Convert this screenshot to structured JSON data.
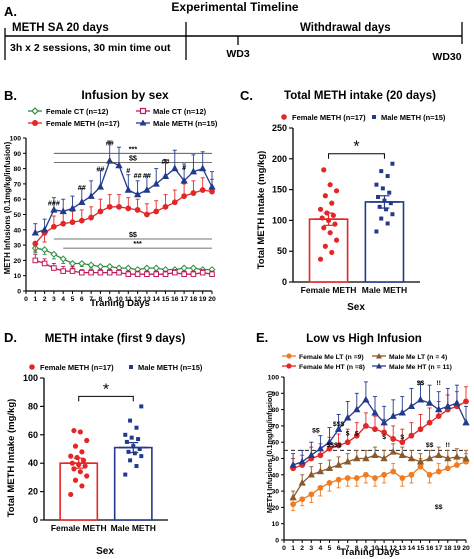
{
  "panels": {
    "a": {
      "letter": "A.",
      "title": "Experimental Timeline",
      "sa_header": "METH SA 20 days",
      "sa_detail": "3h x 2 sessions, 30 min time out",
      "withdrawal_header": "Withdrawal days",
      "wd3": "WD3",
      "wd30": "WD30"
    },
    "b": {
      "letter": "B."
    },
    "c": {
      "letter": "C."
    },
    "d": {
      "letter": "D."
    },
    "e": {
      "letter": "E."
    }
  },
  "colors": {
    "female_ct": "#2e8b3e",
    "male_ct": "#c2185b",
    "female_meth": "#e32626",
    "male_meth": "#233a8c",
    "female_lt": "#f07c22",
    "male_lt": "#8b5a2b"
  },
  "chart_data": [
    {
      "id": "b",
      "type": "line",
      "title": "Infusion by sex",
      "xlabel": "Traning Days",
      "ylabel": "METH Infusions (0.1mg/kg/infusion)",
      "x": [
        0,
        1,
        2,
        3,
        4,
        5,
        6,
        7,
        8,
        9,
        10,
        11,
        12,
        13,
        14,
        15,
        16,
        17,
        18,
        19,
        20
      ],
      "xticks": [
        "0",
        "1",
        "2",
        "3",
        "4",
        "5",
        "6",
        "7",
        "8",
        "9",
        "10",
        "11",
        "12",
        "13",
        "14",
        "15",
        "16",
        "17",
        "18",
        "19",
        "20"
      ],
      "xlim": [
        0,
        20
      ],
      "ylim": [
        0,
        100
      ],
      "yticks": [
        "0",
        "10",
        "20",
        "30",
        "40",
        "50",
        "60",
        "70",
        "80",
        "90",
        "100"
      ],
      "series": [
        {
          "name": "Female CT (n=12)",
          "color_key": "female_ct",
          "marker": "diamond",
          "x": [
            1,
            2,
            3,
            4,
            5,
            6,
            7,
            8,
            9,
            10,
            11,
            12,
            13,
            14,
            15,
            16,
            17,
            18,
            19,
            20
          ],
          "values": [
            28,
            27,
            24,
            21,
            18,
            18,
            17,
            16,
            16,
            15,
            15,
            14,
            15,
            15,
            14,
            14,
            15,
            15,
            14,
            14
          ],
          "err": [
            3,
            3,
            3,
            3,
            3,
            2,
            2,
            2,
            2,
            2,
            2,
            2,
            2,
            2,
            2,
            2,
            2,
            2,
            2,
            2
          ]
        },
        {
          "name": "Male CT (n=12)",
          "color_key": "male_ct",
          "marker": "square",
          "x": [
            1,
            2,
            3,
            4,
            5,
            6,
            7,
            8,
            9,
            10,
            11,
            12,
            13,
            14,
            15,
            16,
            17,
            18,
            19,
            20
          ],
          "values": [
            20,
            18,
            15,
            13,
            13,
            12,
            12,
            12,
            12,
            12,
            11,
            11,
            11,
            11,
            11,
            12,
            11,
            11,
            12,
            11
          ],
          "err": [
            4,
            3,
            3,
            3,
            3,
            2,
            2,
            2,
            2,
            2,
            2,
            2,
            2,
            2,
            2,
            2,
            2,
            2,
            2,
            2
          ]
        },
        {
          "name": "Female METH (n=17)",
          "color_key": "female_meth",
          "marker": "circle",
          "x": [
            1,
            2,
            3,
            4,
            5,
            6,
            7,
            8,
            9,
            10,
            11,
            12,
            13,
            14,
            15,
            16,
            17,
            18,
            19,
            20
          ],
          "values": [
            31,
            38,
            42,
            44,
            45,
            46,
            48,
            52,
            55,
            55,
            54,
            53,
            50,
            52,
            55,
            58,
            62,
            64,
            66,
            65
          ],
          "err": [
            5,
            6,
            7,
            7,
            7,
            7,
            7,
            8,
            8,
            8,
            7,
            7,
            7,
            7,
            8,
            8,
            8,
            8,
            8,
            8
          ]
        },
        {
          "name": "Male METH (n=15)",
          "color_key": "male_meth",
          "marker": "triangle",
          "x": [
            1,
            2,
            3,
            4,
            5,
            6,
            7,
            8,
            9,
            10,
            11,
            12,
            13,
            14,
            15,
            16,
            17,
            18,
            19,
            20
          ],
          "values": [
            38,
            40,
            53,
            52,
            54,
            58,
            62,
            68,
            85,
            82,
            66,
            63,
            66,
            70,
            75,
            80,
            72,
            78,
            80,
            68
          ],
          "err": [
            6,
            7,
            8,
            8,
            8,
            9,
            10,
            11,
            13,
            12,
            10,
            9,
            10,
            10,
            11,
            12,
            11,
            11,
            11,
            10
          ]
        }
      ],
      "annotations": [
        {
          "text": "***",
          "level": 90,
          "from": 3,
          "to": 20
        },
        {
          "text": "$$",
          "level": 84,
          "from": 3,
          "to": 20
        },
        {
          "text": "###",
          "x": 3,
          "y": 56
        },
        {
          "text": "##",
          "x": 6,
          "y": 66
        },
        {
          "text": "##",
          "x": 8,
          "y": 78
        },
        {
          "text": "##",
          "x": 9,
          "y": 95
        },
        {
          "text": "#",
          "x": 11,
          "y": 77
        },
        {
          "text": "##",
          "x": 12,
          "y": 74
        },
        {
          "text": "##",
          "x": 13,
          "y": 74
        },
        {
          "text": "##",
          "x": 15,
          "y": 83
        },
        {
          "text": "#",
          "x": 17,
          "y": 79
        },
        {
          "text": "$$",
          "level": 34,
          "from": 3,
          "to": 20
        },
        {
          "text": "***",
          "level": 28,
          "from": 4,
          "to": 20
        }
      ]
    },
    {
      "id": "c",
      "type": "bar",
      "title": "Total METH intake (20 days)",
      "xlabel": "Sex",
      "ylabel": "Total METH Intake (mg/kg)",
      "categories": [
        "Female METH",
        "Male METH"
      ],
      "legend": [
        "Female METH (n=17)",
        "Male METH (n=15)"
      ],
      "ylim": [
        0,
        250
      ],
      "yticks": [
        "0",
        "50",
        "100",
        "150",
        "200",
        "250"
      ],
      "values": [
        102,
        130
      ],
      "errors": [
        10,
        10
      ],
      "points": [
        [
          37,
          48,
          58,
          68,
          80,
          88,
          94,
          100,
          104,
          108,
          112,
          118,
          128,
          140,
          148,
          158,
          182
        ],
        [
          82,
          95,
          103,
          110,
          118,
          122,
          128,
          132,
          138,
          145,
          152,
          158,
          172,
          180,
          192
        ]
      ],
      "significance": "*"
    },
    {
      "id": "d",
      "type": "bar",
      "title": "METH intake (first 9 days)",
      "xlabel": "Sex",
      "ylabel": "Total METH Intake (mg/kg)",
      "categories": [
        "Female METH",
        "Male METH"
      ],
      "legend": [
        "Female METH (n=17)",
        "Male METH (n=15)"
      ],
      "ylim": [
        0,
        100
      ],
      "yticks": [
        "0",
        "20",
        "40",
        "60",
        "80",
        "100"
      ],
      "values": [
        40,
        51
      ],
      "errors": [
        3.5,
        3.5
      ],
      "points": [
        [
          18,
          24,
          28,
          31,
          34,
          36,
          38,
          39,
          40,
          42,
          44,
          45,
          48,
          52,
          56,
          62,
          63
        ],
        [
          32,
          38,
          42,
          45,
          47,
          48,
          50,
          52,
          55,
          57,
          58,
          60,
          65,
          70,
          80
        ]
      ],
      "significance": "*"
    },
    {
      "id": "e",
      "type": "line",
      "title": "Low vs High Infusion",
      "xlabel": "Traning Days",
      "ylabel": "METH Infusions (0.1mg/kg/infusion)",
      "x": [
        0,
        1,
        2,
        3,
        4,
        5,
        6,
        7,
        8,
        9,
        10,
        11,
        12,
        13,
        14,
        15,
        16,
        17,
        18,
        19,
        20
      ],
      "xticks": [
        "0",
        "1",
        "2",
        "3",
        "4",
        "5",
        "6",
        "7",
        "8",
        "9",
        "10",
        "11",
        "12",
        "13",
        "14",
        "15",
        "16",
        "17",
        "18",
        "19",
        "20"
      ],
      "xlim": [
        0,
        20
      ],
      "ylim": [
        0,
        100
      ],
      "yticks": [
        "0",
        "10",
        "20",
        "30",
        "40",
        "50",
        "60",
        "70",
        "80",
        "90",
        "100"
      ],
      "threshold": 55,
      "series": [
        {
          "name": "Female Me LT (n =9)",
          "color_key": "female_lt",
          "marker": "circle",
          "x": [
            1,
            2,
            3,
            4,
            5,
            6,
            7,
            8,
            9,
            10,
            11,
            12,
            13,
            14,
            15,
            16,
            17,
            18,
            19,
            20
          ],
          "values": [
            22,
            25,
            28,
            32,
            35,
            37,
            38,
            38,
            40,
            38,
            40,
            42,
            38,
            40,
            45,
            40,
            42,
            44,
            46,
            48
          ],
          "err": [
            4,
            4,
            5,
            5,
            5,
            5,
            5,
            5,
            5,
            5,
            5,
            5,
            5,
            5,
            5,
            5,
            5,
            5,
            5,
            5
          ]
        },
        {
          "name": "Male Me LT (n = 4)",
          "color_key": "male_lt",
          "marker": "triangle",
          "x": [
            1,
            2,
            3,
            4,
            5,
            6,
            7,
            8,
            9,
            10,
            11,
            12,
            13,
            14,
            15,
            16,
            17,
            18,
            19,
            20
          ],
          "values": [
            26,
            35,
            40,
            42,
            44,
            46,
            48,
            50,
            50,
            52,
            50,
            54,
            52,
            50,
            48,
            50,
            52,
            50,
            51,
            50
          ],
          "err": [
            4,
            5,
            5,
            5,
            5,
            5,
            5,
            5,
            5,
            5,
            5,
            5,
            5,
            5,
            5,
            5,
            5,
            5,
            5,
            5
          ]
        },
        {
          "name": "Female Me HT (n =8)",
          "color_key": "female_meth",
          "marker": "circle",
          "x": [
            1,
            2,
            3,
            4,
            5,
            6,
            7,
            8,
            9,
            10,
            11,
            12,
            13,
            14,
            15,
            16,
            17,
            18,
            19,
            20
          ],
          "values": [
            44,
            46,
            50,
            52,
            56,
            58,
            60,
            64,
            70,
            68,
            66,
            62,
            60,
            64,
            68,
            72,
            76,
            80,
            82,
            85
          ],
          "err": [
            6,
            6,
            7,
            7,
            7,
            7,
            8,
            8,
            8,
            8,
            8,
            8,
            8,
            8,
            9,
            9,
            9,
            9,
            9,
            9
          ]
        },
        {
          "name": "Male Me HT (n = 11)",
          "color_key": "male_meth",
          "marker": "triangle",
          "x": [
            1,
            2,
            3,
            4,
            5,
            6,
            7,
            8,
            9,
            10,
            11,
            12,
            13,
            14,
            15,
            16,
            17,
            18,
            19,
            20
          ],
          "values": [
            46,
            48,
            52,
            56,
            60,
            68,
            75,
            80,
            86,
            78,
            72,
            76,
            78,
            82,
            86,
            84,
            80,
            82,
            84,
            72
          ],
          "err": [
            7,
            7,
            8,
            8,
            9,
            9,
            10,
            10,
            11,
            10,
            10,
            10,
            10,
            11,
            11,
            11,
            11,
            11,
            11,
            10
          ]
        }
      ],
      "annotations": [
        {
          "text": "$$",
          "x": 15,
          "y": 95
        },
        {
          "text": "!!",
          "x": 17,
          "y": 95
        },
        {
          "text": "$$",
          "x": 3.5,
          "y": 66
        },
        {
          "text": "$$$",
          "x": 6,
          "y": 70
        },
        {
          "text": "$",
          "x": 7,
          "y": 64
        },
        {
          "text": "$",
          "x": 8,
          "y": 64
        },
        {
          "text": "$",
          "x": 11,
          "y": 62
        },
        {
          "text": "$",
          "x": 13,
          "y": 62
        },
        {
          "text": "$$$$",
          "x": 5.5,
          "y": 57
        },
        {
          "text": "$$",
          "x": 16,
          "y": 57
        },
        {
          "text": "!!",
          "x": 18,
          "y": 57
        },
        {
          "text": "$$",
          "x": 17,
          "y": 19
        }
      ]
    }
  ]
}
